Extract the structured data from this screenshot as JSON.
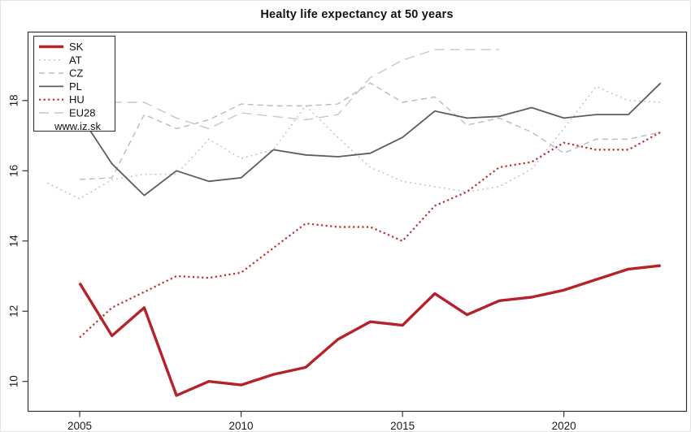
{
  "chart_data": {
    "type": "line",
    "title": "Healty life expectancy at 50 years",
    "watermark": "www.iz.sk",
    "x": [
      2004,
      2005,
      2006,
      2007,
      2008,
      2009,
      2010,
      2011,
      2012,
      2013,
      2014,
      2015,
      2016,
      2017,
      2018,
      2019,
      2020,
      2021,
      2022,
      2023
    ],
    "x_ticks": [
      2005,
      2010,
      2015,
      2020
    ],
    "y_ticks": [
      10,
      12,
      14,
      16,
      18
    ],
    "xlim": [
      2003.4,
      2023.8
    ],
    "ylim": [
      9.15,
      19.95
    ],
    "grid": false,
    "legend_position": "top-left",
    "axis_color": "#333333",
    "tick_label_color": "#1a1a1a",
    "series": [
      {
        "name": "AT",
        "color": "#b8bcc2",
        "dash": "dotted",
        "width": 1.4,
        "values": [
          15.65,
          15.2,
          15.75,
          15.9,
          15.9,
          16.9,
          16.35,
          16.6,
          17.85,
          16.95,
          16.1,
          15.7,
          15.55,
          15.4,
          15.55,
          16.05,
          17.2,
          18.4,
          18.0,
          17.95
        ]
      },
      {
        "name": "CZ",
        "color": "#b4bcc6",
        "dash": "dashed",
        "width": 1.4,
        "values": [
          null,
          15.75,
          15.8,
          17.6,
          17.2,
          17.45,
          17.9,
          17.85,
          17.85,
          17.9,
          18.5,
          17.95,
          18.1,
          17.3,
          17.5,
          17.1,
          16.5,
          16.9,
          16.9,
          17.1
        ]
      },
      {
        "name": "EU28",
        "color": "#c3c8cf",
        "dash": "longdash",
        "width": 1.4,
        "values": [
          null,
          null,
          17.95,
          17.95,
          17.5,
          17.2,
          17.65,
          17.55,
          17.45,
          17.6,
          18.65,
          19.15,
          19.45,
          19.45,
          19.45,
          null,
          null,
          null,
          null,
          null
        ]
      },
      {
        "name": "PL",
        "color": "#5d5d5d",
        "dash": "solid",
        "width": 1.8,
        "values": [
          null,
          17.6,
          16.2,
          15.3,
          16.0,
          15.7,
          15.8,
          16.6,
          16.45,
          16.4,
          16.5,
          16.95,
          17.7,
          17.5,
          17.55,
          17.8,
          17.5,
          17.6,
          17.6,
          18.5
        ]
      },
      {
        "name": "HU",
        "color": "#c02a2e",
        "dash": "densedot",
        "width": 2.2,
        "values": [
          null,
          11.25,
          12.1,
          12.55,
          13.0,
          12.95,
          13.1,
          13.8,
          14.5,
          14.4,
          14.4,
          14.0,
          15.0,
          15.4,
          16.1,
          16.25,
          16.8,
          16.6,
          16.6,
          17.1
        ]
      },
      {
        "name": "SK",
        "color": "#b5222a",
        "dash": "solid",
        "width": 3.4,
        "values": [
          null,
          12.8,
          11.3,
          12.1,
          9.6,
          10.0,
          9.9,
          10.2,
          10.4,
          11.2,
          11.7,
          11.6,
          12.5,
          11.9,
          12.3,
          12.4,
          12.6,
          12.9,
          13.2,
          13.3
        ]
      }
    ],
    "legend_order": [
      "SK",
      "AT",
      "CZ",
      "PL",
      "HU",
      "EU28"
    ]
  }
}
